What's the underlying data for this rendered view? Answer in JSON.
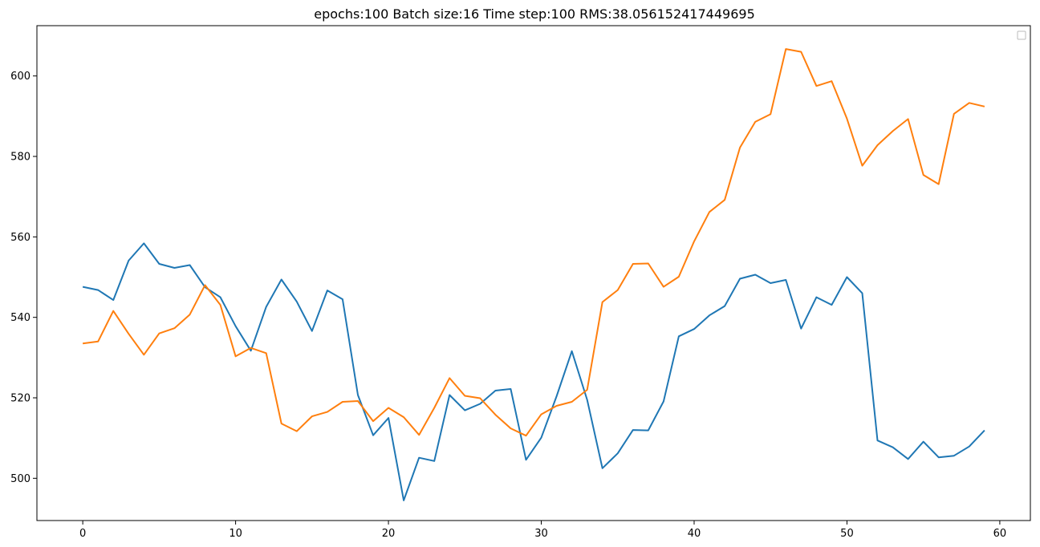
{
  "chart_data": {
    "type": "line",
    "title": "epochs:100   Batch size:16    Time step:100     RMS:38.056152417449695",
    "xlabel": "",
    "ylabel": "",
    "xlim": [
      -3,
      62
    ],
    "ylim": [
      489.5,
      612.5
    ],
    "x_ticks": [
      0,
      10,
      20,
      30,
      40,
      50,
      60
    ],
    "y_ticks": [
      500,
      520,
      540,
      560,
      580,
      600
    ],
    "grid": false,
    "legend": "top-right (empty)",
    "x": [
      0,
      1,
      2,
      3,
      4,
      5,
      6,
      7,
      8,
      9,
      10,
      11,
      12,
      13,
      14,
      15,
      16,
      17,
      18,
      19,
      20,
      21,
      22,
      23,
      24,
      25,
      26,
      27,
      28,
      29,
      30,
      31,
      32,
      33,
      34,
      35,
      36,
      37,
      38,
      39,
      40,
      41,
      42,
      43,
      44,
      45,
      46,
      47,
      48,
      49,
      50,
      51,
      52,
      53,
      54,
      55,
      56,
      57,
      58,
      59
    ],
    "series": [
      {
        "color": "#1f77b4",
        "values": [
          547.6,
          546.8,
          544.3,
          554.1,
          558.4,
          553.3,
          552.3,
          553.0,
          547.5,
          545.0,
          537.8,
          531.7,
          542.6,
          549.4,
          543.9,
          536.6,
          546.7,
          544.5,
          520.7,
          510.7,
          515.0,
          494.5,
          505.1,
          504.3,
          520.7,
          516.9,
          518.5,
          521.8,
          522.2,
          504.6,
          510.1,
          520.4,
          531.6,
          519.5,
          502.5,
          506.2,
          512.0,
          511.9,
          519.1,
          535.3,
          537.1,
          540.5,
          542.8,
          549.6,
          550.6,
          548.5,
          549.3,
          537.2,
          545.0,
          543.1,
          550.0,
          546.0,
          509.4,
          507.7,
          504.8,
          509.1,
          505.2,
          505.6,
          507.9,
          511.9
        ]
      },
      {
        "color": "#ff7f0e",
        "values": [
          533.5,
          534.0,
          541.6,
          535.9,
          530.7,
          536.0,
          537.3,
          540.7,
          548.0,
          543.1,
          530.3,
          532.4,
          531.1,
          513.6,
          511.7,
          515.4,
          516.5,
          519.0,
          519.2,
          514.2,
          517.5,
          515.2,
          510.8,
          517.5,
          524.9,
          520.5,
          519.9,
          515.8,
          512.4,
          510.6,
          515.9,
          518.0,
          519.0,
          522.0,
          543.8,
          546.8,
          553.3,
          553.4,
          547.6,
          550.1,
          558.9,
          566.2,
          569.2,
          582.2,
          588.6,
          590.5,
          606.7,
          606.0,
          597.5,
          598.7,
          589.4,
          577.7,
          582.8,
          586.3,
          589.3,
          575.4,
          573.1,
          590.6,
          593.3,
          592.4
        ]
      }
    ]
  }
}
